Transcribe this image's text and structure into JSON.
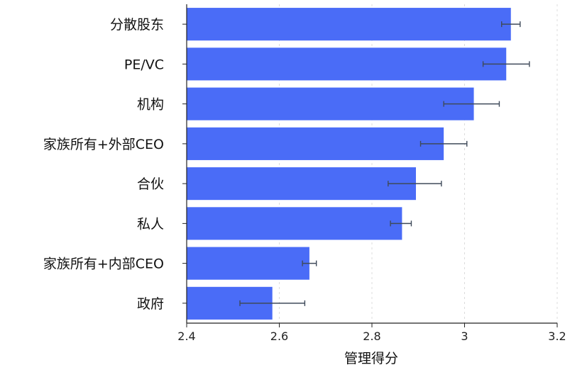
{
  "chart_data": {
    "type": "bar",
    "orientation": "horizontal",
    "categories": [
      "分散股东",
      "PE/VC",
      "机构",
      "家族所有+外部CEO",
      "合伙",
      "私人",
      "家族所有+内部CEO",
      "政府"
    ],
    "values": [
      3.1,
      3.09,
      3.02,
      2.955,
      2.895,
      2.865,
      2.665,
      2.585
    ],
    "error_low": [
      3.08,
      3.04,
      2.955,
      2.905,
      2.835,
      2.84,
      2.65,
      2.515
    ],
    "error_high": [
      3.12,
      3.14,
      3.075,
      3.005,
      2.95,
      2.885,
      2.68,
      2.655
    ],
    "xlabel": "管理得分",
    "ylabel": "",
    "xlim": [
      2.4,
      3.2
    ],
    "xticks": [
      2.4,
      2.6,
      2.8,
      3.0,
      3.2
    ],
    "xtick_labels": [
      "2.4",
      "2.6",
      "2.8",
      "3",
      "3.2"
    ],
    "grid": true,
    "bar_color": "#4a6cf7",
    "errorbar_color": "#3f4a5a"
  }
}
